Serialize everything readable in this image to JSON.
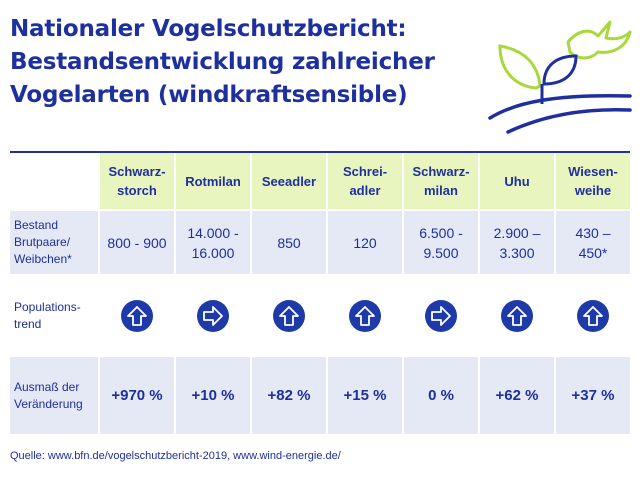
{
  "title": {
    "line1": "Nationaler Vogelschutzbericht:",
    "line2": "Bestandsentwicklung zahlreicher",
    "line3": "Vogelarten (windkraftsensible)"
  },
  "logo_icon": "bird-plant-landscape-icon",
  "colors": {
    "accent": "#1e2f9e",
    "header_bg": "#e9f5bf",
    "row_bg": "#e4e9f5",
    "lime": "#a8d83a"
  },
  "table": {
    "species": [
      {
        "line1": "Schwarz-",
        "line2": "storch"
      },
      {
        "line1": "Rotmilan",
        "line2": ""
      },
      {
        "line1": "Seeadler",
        "line2": ""
      },
      {
        "line1": "Schrei-",
        "line2": "adler"
      },
      {
        "line1": "Schwarz-",
        "line2": "milan"
      },
      {
        "line1": "Uhu",
        "line2": ""
      },
      {
        "line1": "Wiesen-",
        "line2": "weihe"
      }
    ],
    "row_labels": {
      "bestand": {
        "line1": "Bestand",
        "line2": "Brutpaare/",
        "line3": "Weibchen*"
      },
      "trend": {
        "line1": "Populations-",
        "line2": "trend"
      },
      "change": {
        "line1": "Ausmaß der",
        "line2": "Veränderung"
      }
    },
    "bestand": [
      {
        "line1": "800 - 900",
        "line2": ""
      },
      {
        "line1": "14.000 -",
        "line2": "16.000"
      },
      {
        "line1": "850",
        "line2": ""
      },
      {
        "line1": "120",
        "line2": ""
      },
      {
        "line1": "6.500 -",
        "line2": "9.500"
      },
      {
        "line1": "2.900 –",
        "line2": "3.300"
      },
      {
        "line1": "430 –",
        "line2": "450*"
      }
    ],
    "trend": [
      "up",
      "right",
      "up",
      "up",
      "right",
      "up",
      "up"
    ],
    "change": [
      "+970 %",
      "+10 %",
      "+82 %",
      "+15 %",
      "0 %",
      "+62 %",
      "+37 %"
    ]
  },
  "source": "Quelle: www.bfn.de/vogelschutzbericht-2019, www.wind-energie.de/"
}
